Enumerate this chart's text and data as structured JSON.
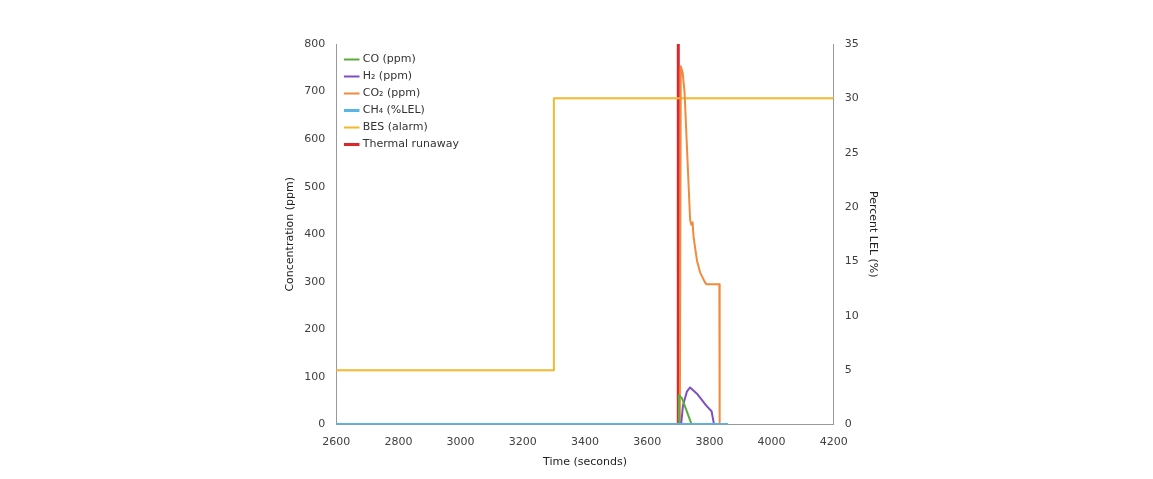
{
  "chart_data": {
    "type": "line",
    "xlabel": "Time (seconds)",
    "ylabel": "Concentration (ppm)",
    "y2label": "Percent LEL (%)",
    "xlim": [
      2600,
      4200
    ],
    "xticks": [
      2600,
      2800,
      3000,
      3200,
      3400,
      3600,
      3800,
      4000,
      4200
    ],
    "ylim": [
      0,
      800
    ],
    "yticks": [
      0,
      100,
      200,
      300,
      400,
      500,
      600,
      700,
      800
    ],
    "y2lim": [
      0,
      35
    ],
    "y2ticks": [
      0,
      5,
      10,
      15,
      20,
      25,
      30,
      35
    ],
    "grid": false,
    "legend": "top left",
    "marker": "none",
    "series": [
      {
        "name": "CO (ppm)",
        "color": "#5aad3c",
        "x": [
          3700,
          3702,
          3712,
          3743
        ],
        "values": [
          0,
          62,
          55,
          0
        ]
      },
      {
        "name": "H₂ (ppm)",
        "color": "#7e4fc2",
        "x": [
          3709,
          3715,
          3728,
          3738,
          3760,
          3790,
          3807,
          3815
        ],
        "values": [
          0,
          40,
          70,
          78,
          65,
          40,
          28,
          0
        ]
      },
      {
        "name": "CO₂ (ppm)",
        "color": "#f08a3c",
        "x": [
          3705,
          3708,
          3714,
          3720,
          3738,
          3742,
          3746,
          3749,
          3760,
          3770,
          3785,
          3790,
          3832,
          3833
        ],
        "values": [
          0,
          753,
          740,
          700,
          430,
          420,
          425,
          395,
          345,
          320,
          300,
          295,
          295,
          0
        ]
      },
      {
        "name": "CH₄ (%LEL)",
        "color": "#5ab4e6",
        "axis": "y2",
        "x": [
          2600,
          3860
        ],
        "values": [
          0,
          0
        ]
      },
      {
        "name": "BES (alarm)",
        "color": "#f5b82e",
        "axis": "y2",
        "x": [
          2600,
          3300,
          3300,
          4200
        ],
        "values": [
          5,
          5,
          30,
          30
        ]
      },
      {
        "name": "Thermal runaway",
        "color": "#e0262b",
        "x": [
          3700,
          3700
        ],
        "values": [
          0,
          800
        ]
      }
    ]
  }
}
